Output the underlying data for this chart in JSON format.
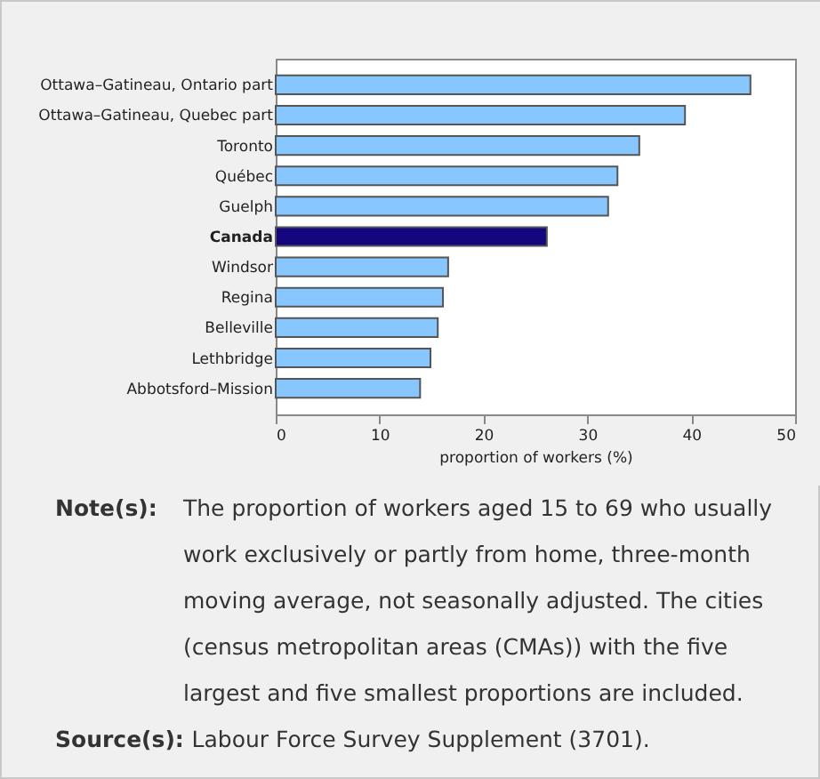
{
  "chart_data": {
    "type": "bar",
    "orientation": "horizontal",
    "xlabel": "proportion of workers (%)",
    "categories": [
      "Ottawa–Gatineau, Ontario part",
      "Ottawa–Gatineau, Quebec part",
      "Toronto",
      "Québec",
      "Guelph",
      "Canada",
      "Windsor",
      "Regina",
      "Belleville",
      "Lethbridge",
      "Abbotsford–Mission"
    ],
    "values": [
      45.7,
      39.4,
      35.0,
      32.9,
      32.0,
      26.1,
      16.6,
      16.1,
      15.6,
      14.9,
      13.9
    ],
    "colors": [
      "#88c6ff",
      "#88c6ff",
      "#88c6ff",
      "#88c6ff",
      "#88c6ff",
      "#14067f",
      "#88c6ff",
      "#88c6ff",
      "#88c6ff",
      "#88c6ff",
      "#88c6ff"
    ],
    "xlim": [
      0,
      50
    ],
    "xticks": [
      0,
      10,
      20,
      30,
      40,
      50
    ],
    "grid": false,
    "legend": false,
    "annotations": [
      "Note(s): The proportion of workers aged 15 to 69 who usually work exclusively or partly from home, three-month moving average, not seasonally adjusted. The cities (census metropolitan areas (CMAs)) with the five largest and five smallest proportions are included.",
      "Source(s): Labour Force Survey Supplement (3701)."
    ]
  }
}
